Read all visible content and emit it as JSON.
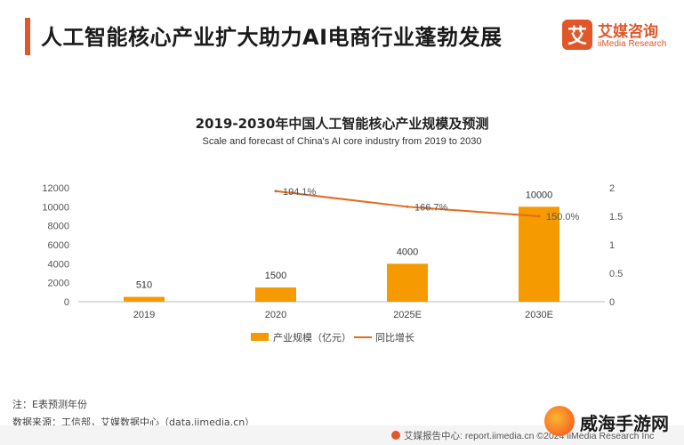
{
  "header": {
    "title": "人工智能核心产业扩大助力AI电商行业蓬勃发展",
    "logo_mark": "艾",
    "logo_cn": "艾媒咨询",
    "logo_en": "iiMedia Research"
  },
  "colors": {
    "bar": "#f59a00",
    "line": "#e56a1c",
    "accent": "#e0572a"
  },
  "chart_data": {
    "type": "bar",
    "title": "2019-2030年中国人工智能核心产业规模及预测",
    "subtitle": "Scale and forecast of China's AI core industry from 2019 to 2030",
    "categories": [
      "2019",
      "2020",
      "2025E",
      "2030E"
    ],
    "series": [
      {
        "name": "产业规模（亿元）",
        "type": "bar",
        "axis": "left",
        "values": [
          510,
          1500,
          4000,
          10000
        ],
        "labels": [
          "510",
          "1500",
          "4000",
          "10000"
        ]
      },
      {
        "name": "同比增长",
        "type": "line",
        "axis": "right",
        "values": [
          null,
          1.941,
          1.667,
          1.5
        ],
        "labels": [
          "",
          "194.1%",
          "166.7%",
          "150.0%"
        ]
      }
    ],
    "y_left": {
      "range": [
        0,
        12000
      ],
      "ticks": [
        "0",
        "2000",
        "4000",
        "6000",
        "8000",
        "10000",
        "12000"
      ]
    },
    "y_right": {
      "range": [
        0,
        2
      ],
      "ticks": [
        "0",
        "0.5",
        "1",
        "1.5",
        "2"
      ]
    },
    "legend_position": "bottom",
    "grid": false
  },
  "notes": {
    "note": "注：E表预测年份",
    "source": "数据来源：工信部，艾媒数据中心（data.iimedia.cn）"
  },
  "footer": {
    "text": "艾媒报告中心: report.iimedia.cn   ©2024 iiMedia Research Inc",
    "watermark": "威海手游网"
  }
}
